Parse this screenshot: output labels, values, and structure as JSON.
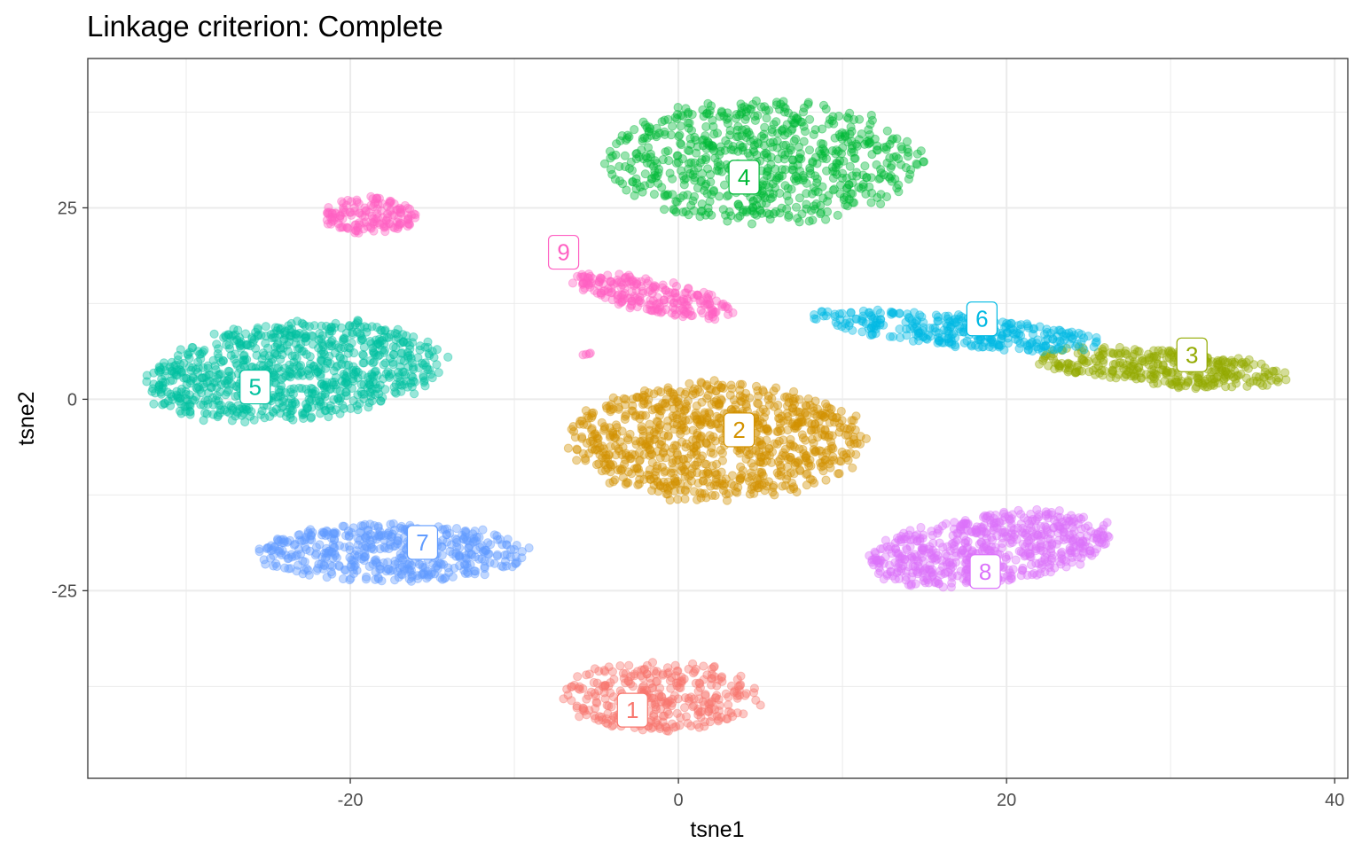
{
  "chart_data": {
    "type": "scatter",
    "title": "Linkage criterion: Complete",
    "xlabel": "tsne1",
    "ylabel": "tsne2",
    "xlim": [
      -36.0,
      40.8
    ],
    "ylim": [
      -49.5,
      44.5
    ],
    "x_ticks": [
      -20,
      0,
      20,
      40
    ],
    "x_tick_labels": [
      "-20",
      "0",
      "20",
      "40"
    ],
    "y_ticks": [
      -25,
      0,
      25
    ],
    "y_tick_labels": [
      "-25",
      "0",
      "25"
    ],
    "grid": true,
    "legend": "none",
    "point_opacity": 0.4,
    "clusters": [
      {
        "label": "1",
        "color": "#F8766D",
        "label_x": -2.8,
        "label_y": -40.6,
        "blobs": [
          {
            "cx": -1.0,
            "cy": -38.8,
            "rx": 6.0,
            "ry": 4.5,
            "tilt": 0,
            "n": 320
          }
        ]
      },
      {
        "label": "2",
        "color": "#D39200",
        "label_x": 3.7,
        "label_y": -4.0,
        "blobs": [
          {
            "cx": 2.3,
            "cy": -5.5,
            "rx": 9.0,
            "ry": 7.6,
            "tilt": 0,
            "n": 900
          }
        ]
      },
      {
        "label": "3",
        "color": "#93AA00",
        "label_x": 31.3,
        "label_y": 5.8,
        "blobs": [
          {
            "cx": 29.5,
            "cy": 4.2,
            "rx": 7.8,
            "ry": 2.4,
            "tilt": -10,
            "n": 330
          }
        ]
      },
      {
        "label": "4",
        "color": "#00BA38",
        "label_x": 4.0,
        "label_y": 29.0,
        "blobs": [
          {
            "cx": 5.2,
            "cy": 31.0,
            "rx": 9.5,
            "ry": 8.0,
            "tilt": 0,
            "n": 700
          }
        ]
      },
      {
        "label": "5",
        "color": "#00C19F",
        "label_x": -25.8,
        "label_y": 1.6,
        "blobs": [
          {
            "cx": -23.5,
            "cy": 3.6,
            "rx": 9.2,
            "ry": 6.2,
            "tilt": 18,
            "n": 850
          }
        ]
      },
      {
        "label": "6",
        "color": "#00B9E3",
        "label_x": 18.5,
        "label_y": 10.5,
        "blobs": [
          {
            "cx": 17.0,
            "cy": 9.0,
            "rx": 9.0,
            "ry": 2.0,
            "tilt": -12,
            "n": 320
          }
        ]
      },
      {
        "label": "7",
        "color": "#619CFF",
        "label_x": -15.6,
        "label_y": -18.7,
        "blobs": [
          {
            "cx": -17.5,
            "cy": -20.0,
            "rx": 8.2,
            "ry": 3.8,
            "tilt": 0,
            "n": 480
          }
        ]
      },
      {
        "label": "8",
        "color": "#DB72FB",
        "label_x": 18.7,
        "label_y": -22.5,
        "blobs": [
          {
            "cx": 19.0,
            "cy": -19.5,
            "rx": 7.8,
            "ry": 4.4,
            "tilt": 20,
            "n": 620
          }
        ]
      },
      {
        "label": "9",
        "color": "#FF61C3",
        "label_x": -7.0,
        "label_y": 19.2,
        "blobs": [
          {
            "cx": -18.8,
            "cy": 24.0,
            "rx": 2.8,
            "ry": 2.4,
            "tilt": 0,
            "n": 150
          },
          {
            "cx": -1.5,
            "cy": 13.5,
            "rx": 5.5,
            "ry": 2.0,
            "tilt": -25,
            "n": 230
          },
          {
            "cx": -5.5,
            "cy": 5.9,
            "rx": 0.4,
            "ry": 0.2,
            "tilt": 0,
            "n": 4
          }
        ]
      }
    ]
  }
}
